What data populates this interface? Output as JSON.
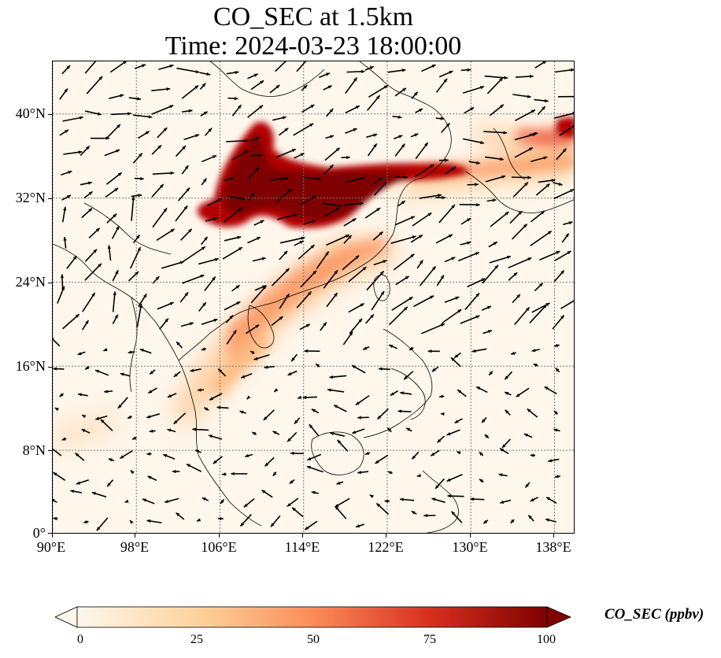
{
  "title": {
    "line1": "CO_SEC at 1.5km",
    "line2": "Time: 2024-03-23 18:00:00"
  },
  "map": {
    "lon_range": [
      90,
      140
    ],
    "lat_range": [
      0,
      45
    ],
    "gridlines": true,
    "x_ticks": [
      "90°E",
      "98°E",
      "106°E",
      "114°E",
      "122°E",
      "130°E",
      "138°E"
    ],
    "x_tick_values": [
      90,
      98,
      106,
      114,
      122,
      130,
      138
    ],
    "y_ticks": [
      "0°",
      "8°N",
      "16°N",
      "24°N",
      "32°N",
      "40°N"
    ],
    "y_tick_values": [
      0,
      8,
      16,
      24,
      32,
      40
    ],
    "field": "CO_SEC concentration (shaded) with wind vectors",
    "colormap_colors": [
      "#fff7ec",
      "#fdd49e",
      "#fc8d59",
      "#d7301f",
      "#7f0000"
    ]
  },
  "colorbar": {
    "label": "CO_SEC (ppbv)",
    "ticks": [
      "0",
      "25",
      "50",
      "75",
      "100"
    ],
    "tick_values": [
      0,
      25,
      50,
      75,
      100
    ],
    "range": [
      0,
      100
    ],
    "extend": "both"
  }
}
